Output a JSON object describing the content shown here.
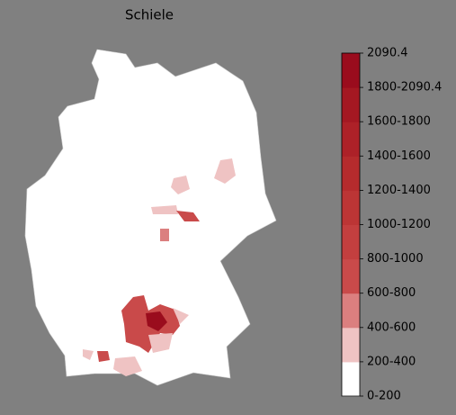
{
  "title": "Schiele",
  "colorbar": {
    "ticks": [
      "0-200",
      "200-400",
      "400-600",
      "600-800",
      "800-1000",
      "1000-1200",
      "1200-1400",
      "1400-1600",
      "1600-1800",
      "1800-2090.4",
      "2090.4"
    ],
    "colors": [
      "#ffffff",
      "#efc3c3",
      "#db7f7f",
      "#c94a4a",
      "#c33f3f",
      "#bc3535",
      "#b52b2d",
      "#ad2128",
      "#a41822",
      "#9a0c1d"
    ]
  }
}
